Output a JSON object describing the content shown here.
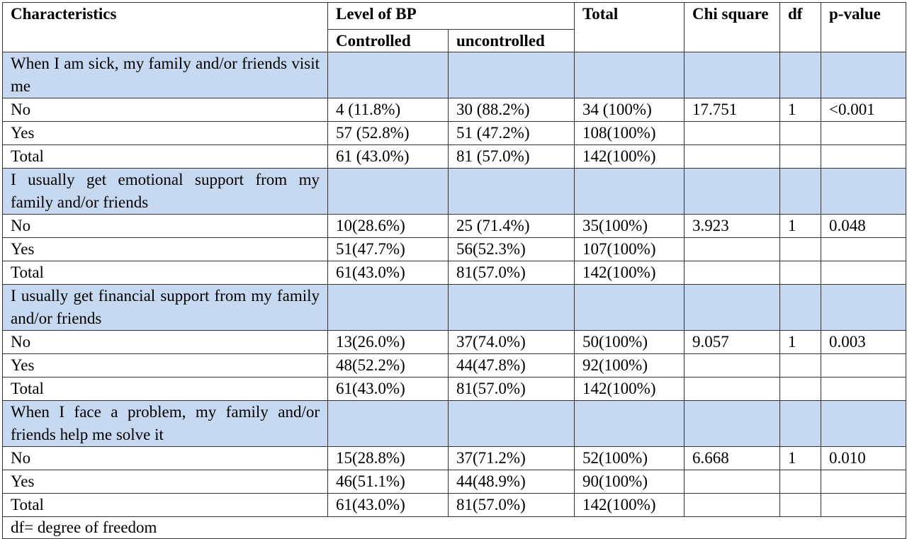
{
  "header": {
    "characteristics": "Characteristics",
    "level_of_bp": "Level of BP",
    "controlled": "Controlled",
    "uncontrolled": "uncontrolled",
    "total": "Total",
    "chi_square": "Chi square",
    "df": "df",
    "p_value": "p-value"
  },
  "sections": [
    {
      "question": "When I am sick, my family and/or friends visit me",
      "rows": [
        {
          "label": "No",
          "controlled": "4 (11.8%)",
          "uncontrolled": "30 (88.2%)",
          "total": "34 (100%)",
          "chi": "17.751",
          "df": "1",
          "p": "<0.001"
        },
        {
          "label": "Yes",
          "controlled": "57 (52.8%)",
          "uncontrolled": "51 (47.2%)",
          "total": "108(100%)",
          "chi": "",
          "df": "",
          "p": ""
        },
        {
          "label": "Total",
          "controlled": "61 (43.0%)",
          "uncontrolled": "81 (57.0%)",
          "total": "142(100%)",
          "chi": "",
          "df": "",
          "p": ""
        }
      ]
    },
    {
      "question": "I usually get emotional support from my family and/or friends",
      "rows": [
        {
          "label": "No",
          "controlled": "10(28.6%)",
          "uncontrolled": "25 (71.4%)",
          "total": "35(100%)",
          "chi": "3.923",
          "df": "1",
          "p": "0.048"
        },
        {
          "label": "Yes",
          "controlled": "51(47.7%)",
          "uncontrolled": "56(52.3%)",
          "total": "107(100%)",
          "chi": "",
          "df": "",
          "p": ""
        },
        {
          "label": "Total",
          "controlled": "61(43.0%)",
          "uncontrolled": "81(57.0%)",
          "total": "142(100%)",
          "chi": "",
          "df": "",
          "p": ""
        }
      ]
    },
    {
      "question": "I usually get financial support from my family and/or friends",
      "rows": [
        {
          "label": "No",
          "controlled": "13(26.0%)",
          "uncontrolled": "37(74.0%)",
          "total": "50(100%)",
          "chi": "9.057",
          "df": "1",
          "p": "0.003"
        },
        {
          "label": "Yes",
          "controlled": "48(52.2%)",
          "uncontrolled": "44(47.8%)",
          "total": "92(100%)",
          "chi": "",
          "df": "",
          "p": ""
        },
        {
          "label": "Total",
          "controlled": "61(43.0%)",
          "uncontrolled": "81(57.0%)",
          "total": "142(100%)",
          "chi": "",
          "df": "",
          "p": ""
        }
      ]
    },
    {
      "question": "When I face a problem, my family and/or friends help me solve it",
      "rows": [
        {
          "label": "No",
          "controlled": "15(28.8%)",
          "uncontrolled": "37(71.2%)",
          "total": "52(100%)",
          "chi": "6.668",
          "df": "1",
          "p": "0.010"
        },
        {
          "label": "Yes",
          "controlled": "46(51.1%)",
          "uncontrolled": "44(48.9%)",
          "total": "90(100%)",
          "chi": "",
          "df": "",
          "p": ""
        },
        {
          "label": "Total",
          "controlled": "61(43.0%)",
          "uncontrolled": "81(57.0%)",
          "total": "142(100%)",
          "chi": "",
          "df": "",
          "p": ""
        }
      ]
    }
  ],
  "footnote": "df= degree of freedom",
  "colors": {
    "section_bg": "#c6d9f1",
    "border": "#333333"
  }
}
